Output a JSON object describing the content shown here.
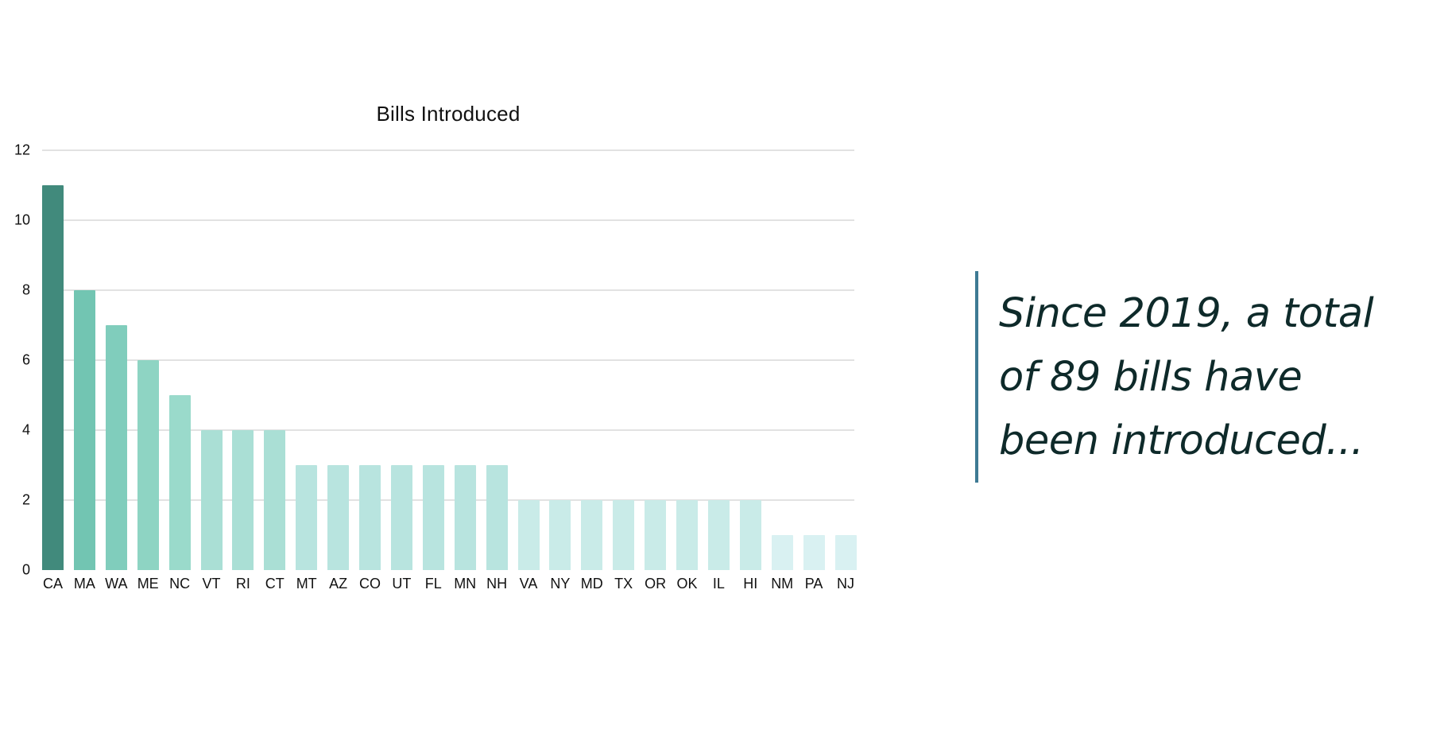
{
  "chart_data": {
    "type": "bar",
    "title": "Bills Introduced",
    "xlabel": "",
    "ylabel": "",
    "ylim": [
      0,
      12
    ],
    "yticks": [
      0,
      2,
      4,
      6,
      8,
      10,
      12
    ],
    "grid": true,
    "legend": null,
    "categories": [
      "CA",
      "MA",
      "WA",
      "ME",
      "NC",
      "VT",
      "RI",
      "CT",
      "MT",
      "AZ",
      "CO",
      "UT",
      "FL",
      "MN",
      "NH",
      "VA",
      "NY",
      "MD",
      "TX",
      "OR",
      "OK",
      "IL",
      "HI",
      "NM",
      "PA",
      "NJ"
    ],
    "values": [
      11,
      8,
      7,
      6,
      5,
      4,
      4,
      4,
      3,
      3,
      3,
      3,
      3,
      3,
      3,
      2,
      2,
      2,
      2,
      2,
      2,
      2,
      2,
      1,
      1,
      1
    ],
    "colors": [
      "#418a7c",
      "#72c5b2",
      "#80cdbc",
      "#8ed4c3",
      "#9adacb",
      "#aadfd5",
      "#aadfd5",
      "#aadfd5",
      "#b8e4df",
      "#b8e4df",
      "#b8e4df",
      "#b8e4df",
      "#b8e4df",
      "#b8e4df",
      "#b8e4df",
      "#c9ebe8",
      "#c9ebe8",
      "#c9ebe8",
      "#c9ebe8",
      "#c9ebe8",
      "#c9ebe8",
      "#c9ebe8",
      "#c9ebe8",
      "#d9f1f2",
      "#d9f1f2",
      "#d9f1f2"
    ]
  },
  "callout": {
    "lines": [
      "Since 2019, a total",
      "of 89 bills have",
      "been introduced..."
    ],
    "accent_color": "#3e7a94",
    "text_color": "#0e2a2a"
  }
}
